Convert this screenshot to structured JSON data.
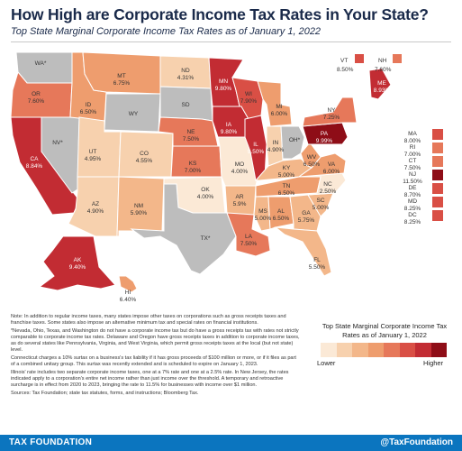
{
  "header": {
    "title": "How High are Corporate Income Tax Rates in Your State?",
    "subtitle": "Top State Marginal Corporate Income Tax Rates as of January 1, 2022"
  },
  "palette": [
    "#fbe9d6",
    "#f7d1ae",
    "#f3b78a",
    "#ee9d6e",
    "#e6785a",
    "#d94f45",
    "#c22c33",
    "#8e0d17"
  ],
  "map": {
    "states": [
      {
        "code": "WA",
        "value": "",
        "star": true
      },
      {
        "code": "OR",
        "value": "7.60%"
      },
      {
        "code": "CA",
        "value": "8.84%"
      },
      {
        "code": "NV",
        "value": "",
        "star": true
      },
      {
        "code": "ID",
        "value": "6.50%"
      },
      {
        "code": "MT",
        "value": "6.75%"
      },
      {
        "code": "WY",
        "value": ""
      },
      {
        "code": "UT",
        "value": "4.95%"
      },
      {
        "code": "CO",
        "value": "4.55%"
      },
      {
        "code": "AZ",
        "value": "4.90%"
      },
      {
        "code": "NM",
        "value": "5.90%"
      },
      {
        "code": "ND",
        "value": "4.31%"
      },
      {
        "code": "SD",
        "value": ""
      },
      {
        "code": "NE",
        "value": "7.50%"
      },
      {
        "code": "KS",
        "value": "7.00%"
      },
      {
        "code": "OK",
        "value": "4.00%"
      },
      {
        "code": "TX",
        "value": "",
        "star": true
      },
      {
        "code": "MN",
        "value": "9.80%"
      },
      {
        "code": "IA",
        "value": "9.80%"
      },
      {
        "code": "MO",
        "value": "4.00%"
      },
      {
        "code": "AR",
        "value": "5.9%"
      },
      {
        "code": "LA",
        "value": "7.50%"
      },
      {
        "code": "WI",
        "value": "7.90%"
      },
      {
        "code": "IL",
        "value": "9.50%"
      },
      {
        "code": "MI",
        "value": "6.00%"
      },
      {
        "code": "IN",
        "value": "4.90%"
      },
      {
        "code": "OH",
        "value": "",
        "star": true
      },
      {
        "code": "KY",
        "value": "5.00%"
      },
      {
        "code": "TN",
        "value": "6.50%"
      },
      {
        "code": "MS",
        "value": "5.00%"
      },
      {
        "code": "AL",
        "value": "6.50%"
      },
      {
        "code": "GA",
        "value": "5.75%"
      },
      {
        "code": "FL",
        "value": "5.50%"
      },
      {
        "code": "SC",
        "value": "5.00%"
      },
      {
        "code": "NC",
        "value": "2.50%"
      },
      {
        "code": "VA",
        "value": "6.00%"
      },
      {
        "code": "WV",
        "value": "6.50%"
      },
      {
        "code": "PA",
        "value": "9.99%"
      },
      {
        "code": "NY",
        "value": "7.25%"
      },
      {
        "code": "ME",
        "value": "8.93%"
      },
      {
        "code": "AK",
        "value": "9.40%"
      },
      {
        "code": "HI",
        "value": "6.40%"
      }
    ],
    "northeast_boxes": [
      {
        "code": "VT",
        "value": "8.50%"
      },
      {
        "code": "NH",
        "value": "7.60%"
      }
    ],
    "side_boxes": [
      {
        "code": "MA",
        "value": "8.00%"
      },
      {
        "code": "RI",
        "value": "7.00%"
      },
      {
        "code": "CT",
        "value": "7.50%"
      },
      {
        "code": "NJ",
        "value": "11.50%"
      },
      {
        "code": "DE",
        "value": "8.70%"
      },
      {
        "code": "MD",
        "value": "8.25%"
      },
      {
        "code": "DC",
        "value": "8.25%"
      }
    ]
  },
  "notes": [
    "Note: In addition to regular income taxes, many states impose other taxes on corporations such as gross receipts taxes and franchise taxes. Some states also impose an alternative minimum tax and special rates on financial institutions.",
    "*Nevada, Ohio, Texas, and Washington do not have a corporate income tax but do have a gross receipts tax with rates not strictly comparable to corporate income tax rates. Delaware and Oregon have gross receipts taxes in addition to corporate income taxes, as do several states like Pennsylvania, Virginia, and West Virginia, which permit gross receipts taxes at the local (but not state) level.",
    "Connecticut charges a 10% surtax on a business's tax liability if it has gross proceeds of $100 million or more, or if it files as part of a combined unitary group. This surtax was recently extended and is scheduled to expire on January 1, 2023.",
    "Illinois' rate includes two separate corporate income taxes, one at a 7% rate and one at a 2.5% rate. In New Jersey, the rates indicated apply to a corporation's entire net income rather than just income over the threshold. A temporary and retroactive surcharge is in effect from 2020 to 2023, bringing the rate to 11.5% for businesses with income over $1 million.",
    "Sources: Tax Foundation; state tax statutes, forms, and instructions; Bloomberg Tax."
  ],
  "legend": {
    "title": "Top State Marginal Corporate Income Tax Rates as of January 1, 2022",
    "low": "Lower",
    "high": "Higher"
  },
  "footer": {
    "brand": "TAX FOUNDATION",
    "handle": "@TaxFoundation"
  }
}
